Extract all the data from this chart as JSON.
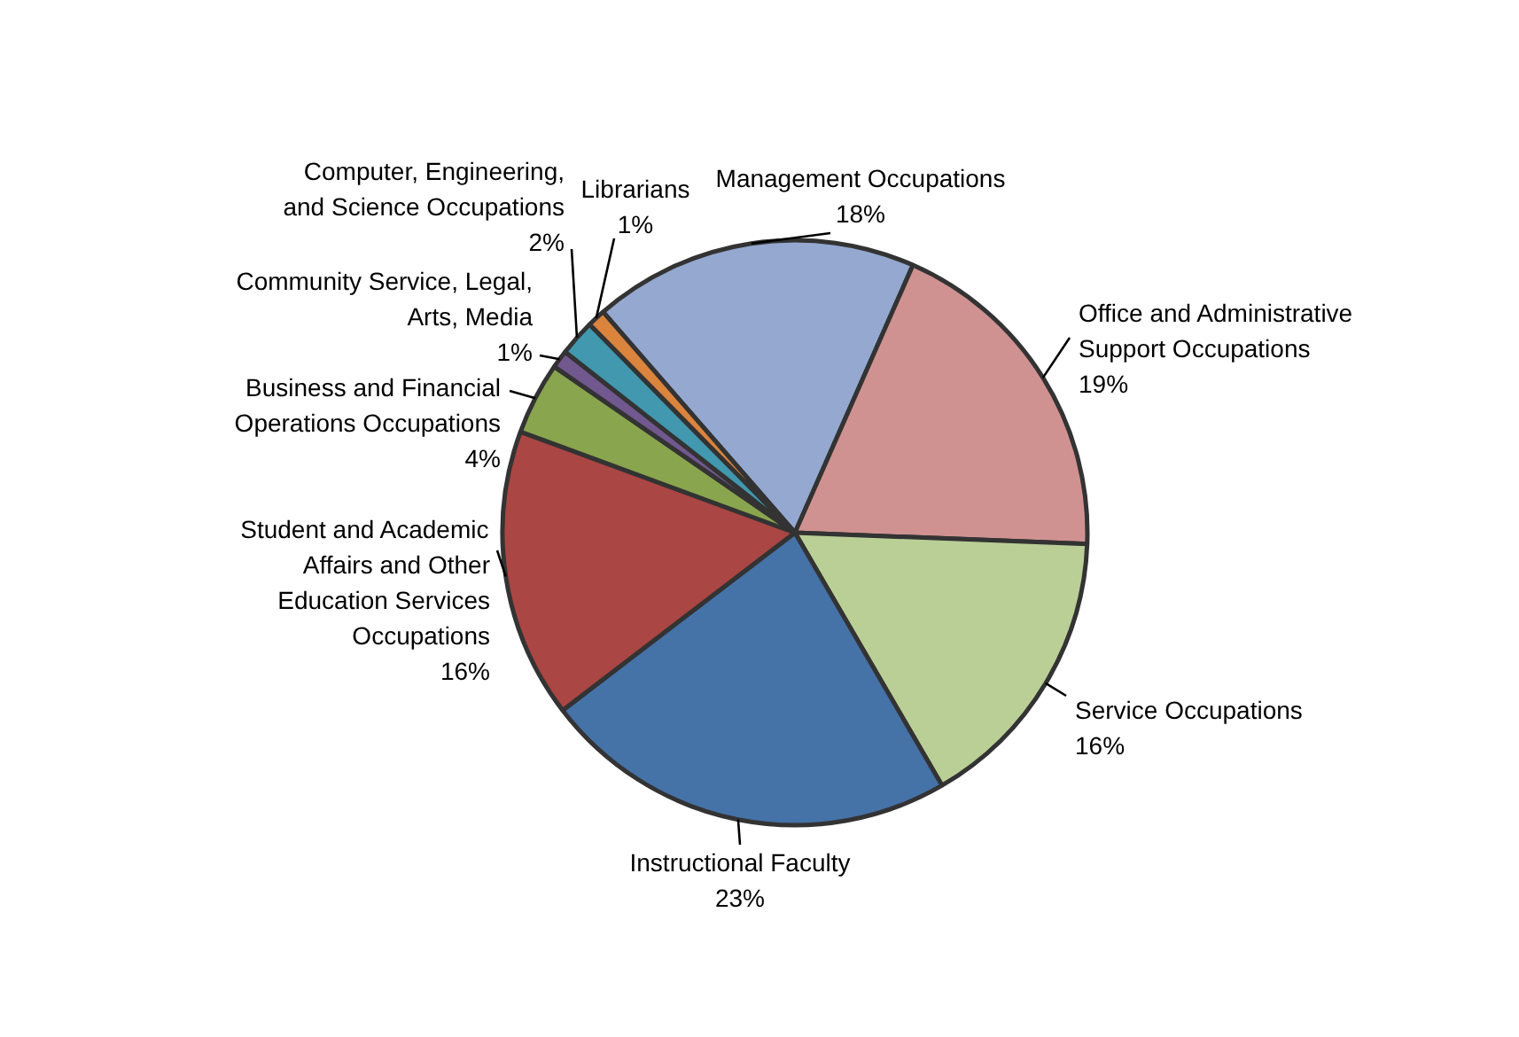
{
  "chart_data": {
    "type": "pie",
    "categories": [
      "Management Occupations",
      "Office and Administrative Support Occupations",
      "Service Occupations",
      "Instructional Faculty",
      "Student and Academic Affairs and Other Education Services Occupations",
      "Business and Financial Operations Occupations",
      "Community Service, Legal, Arts, Media",
      "Computer, Engineering, and Science Occupations",
      "Librarians"
    ],
    "values": [
      18,
      19,
      16,
      23,
      16,
      4,
      1,
      2,
      1
    ],
    "value_labels": [
      "18%",
      "19%",
      "16%",
      "23%",
      "16%",
      "4%",
      "1%",
      "2%",
      "1%"
    ],
    "colors": [
      "#94a8d0",
      "#d09291",
      "#b9cf96",
      "#4572a7",
      "#aa4643",
      "#89a54e",
      "#71588f",
      "#4198af",
      "#db843d"
    ]
  }
}
